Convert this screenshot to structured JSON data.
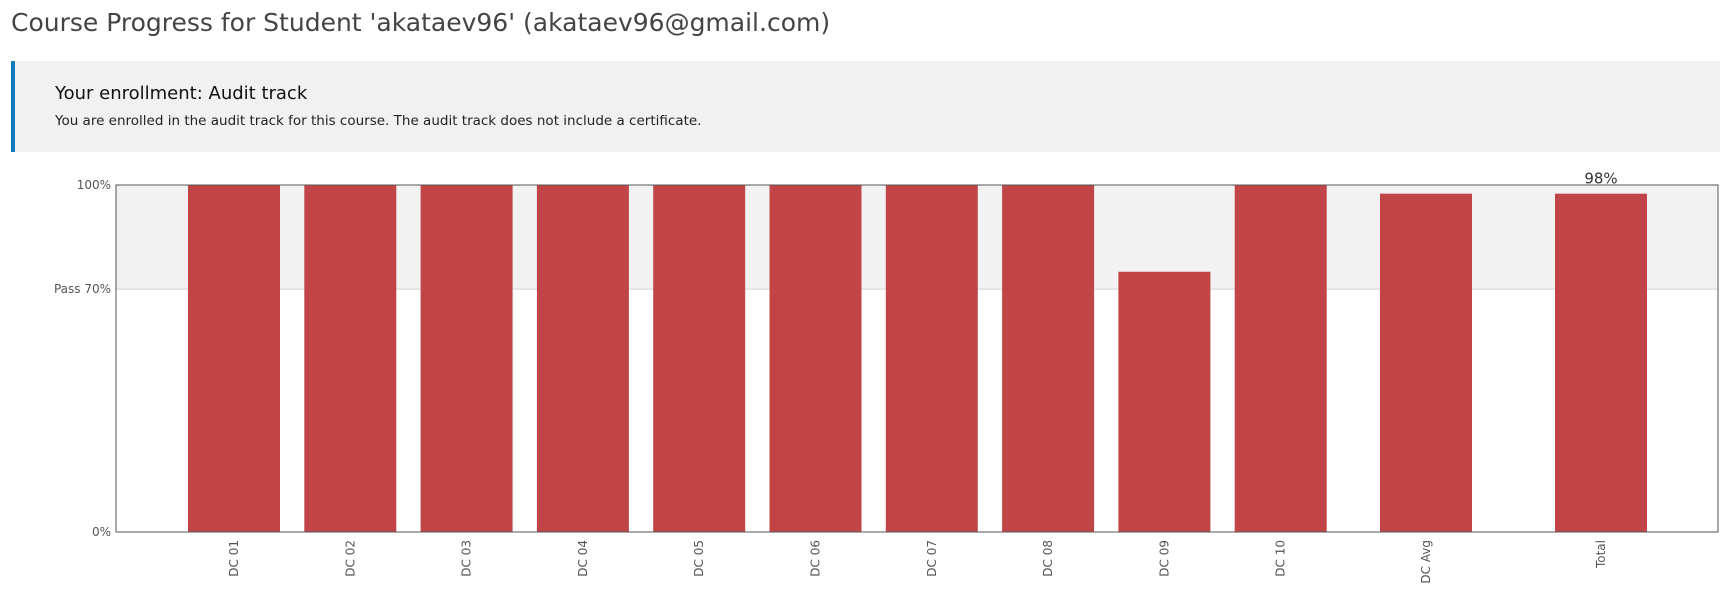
{
  "header": {
    "title": "Course Progress for Student 'akataev96' (akataev96@gmail.com)"
  },
  "enrollment": {
    "title": "Your enrollment: Audit track",
    "message": "You are enrolled in the audit track for this course. The audit track does not include a certificate.",
    "accent_color": "#0e7bbf"
  },
  "chart_data": {
    "type": "bar",
    "categories": [
      "DC 01",
      "DC 02",
      "DC 03",
      "DC 04",
      "DC 05",
      "DC 06",
      "DC 07",
      "DC 08",
      "DC 09",
      "DC 10",
      "DC Avg",
      "Total"
    ],
    "values": [
      100,
      100,
      100,
      100,
      100,
      100,
      100,
      100,
      75,
      100,
      97.5,
      97.5
    ],
    "ylim": [
      0,
      100
    ],
    "y_ticks": [
      {
        "value": 100,
        "label": "100%"
      },
      {
        "value": 70,
        "label": "Pass 70%"
      },
      {
        "value": 0,
        "label": "0%"
      }
    ],
    "annotations": [
      {
        "category": "Total",
        "text": "98%"
      }
    ],
    "pass_threshold": 70,
    "bar_color": "#c14546",
    "pass_band_color": "#f2f2f2",
    "x_label_rotation": "vertical"
  }
}
